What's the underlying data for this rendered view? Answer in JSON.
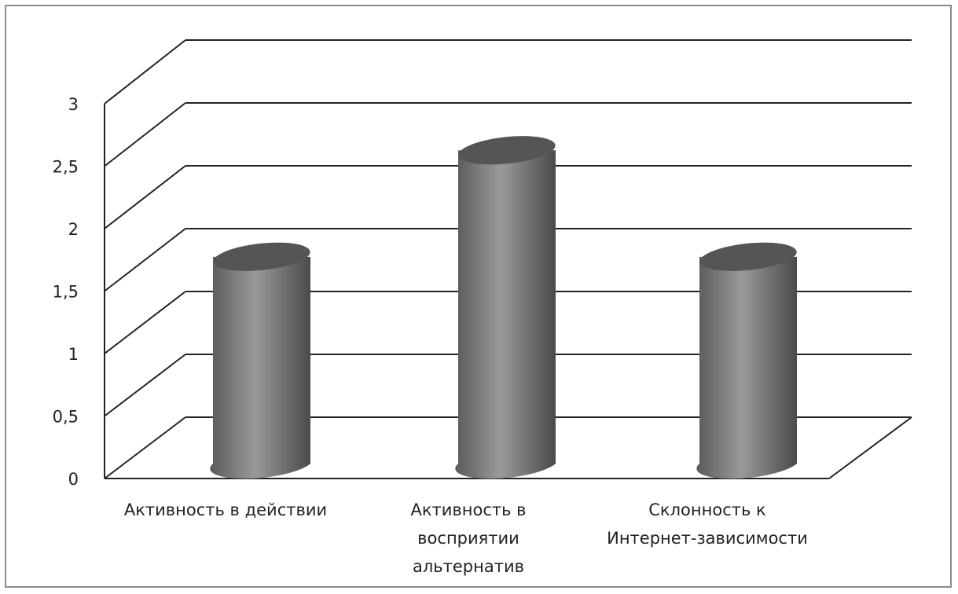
{
  "chart_data": {
    "type": "bar",
    "style": "3d-cylinder",
    "categories": [
      [
        "Активность в действии"
      ],
      [
        "Активность в",
        "восприятии",
        "альтернатив"
      ],
      [
        "Склонность к",
        "Интернет-зависимости"
      ]
    ],
    "values": [
      1.65,
      2.5,
      1.65
    ],
    "ylim": [
      0,
      3
    ],
    "yticks": [
      "0",
      "0,5",
      "1",
      "1,5",
      "2",
      "2,5",
      "3"
    ],
    "grid": true,
    "legend": "none",
    "colors": {
      "bar": "#7a7a7a",
      "grid": "#222222",
      "frame": "#8c8c8c"
    }
  }
}
